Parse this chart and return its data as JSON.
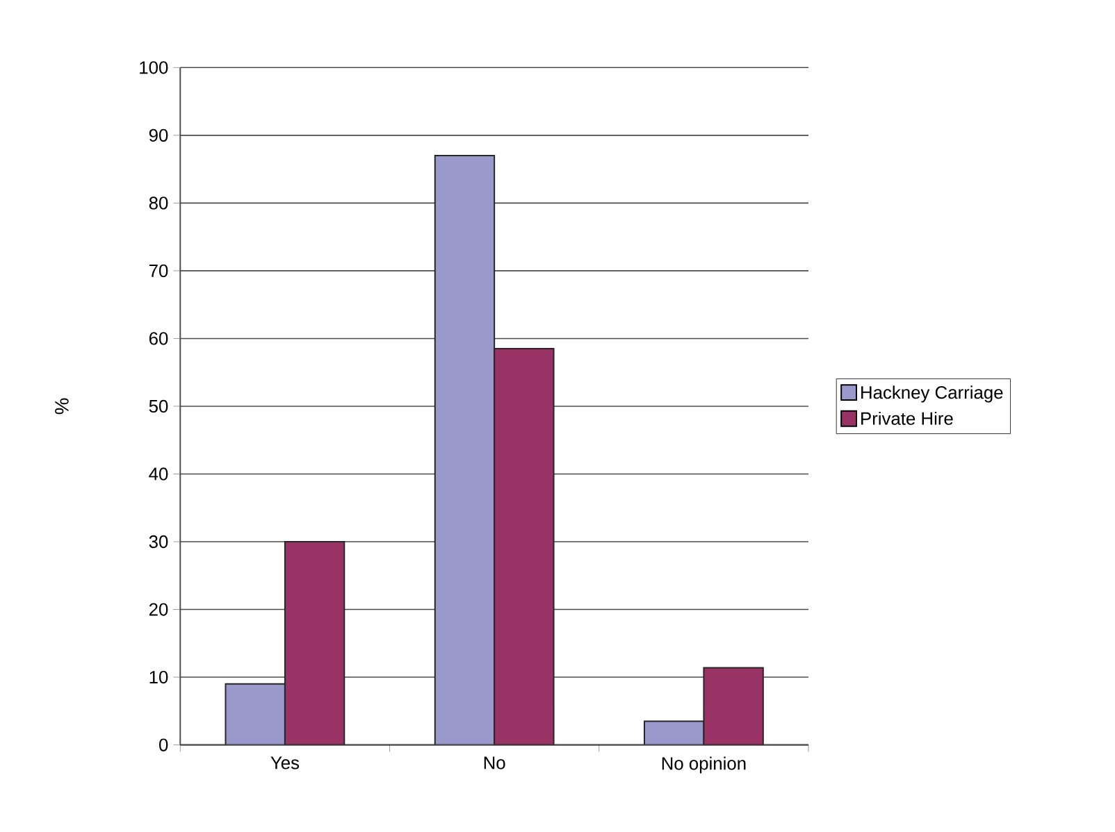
{
  "chart_data": {
    "type": "bar",
    "ylabel": "%",
    "categories": [
      "Yes",
      "No",
      "No opinion"
    ],
    "series": [
      {
        "name": "Hackney Carriage",
        "color": "#9999cc",
        "values": [
          9,
          87,
          3.5
        ]
      },
      {
        "name": "Private Hire",
        "color": "#993366",
        "values": [
          30,
          58.5,
          11.4
        ]
      }
    ],
    "ylim": [
      0,
      100
    ],
    "yticks": [
      0,
      10,
      20,
      30,
      40,
      50,
      60,
      70,
      80,
      90,
      100
    ],
    "grid": "y",
    "legend": "right"
  }
}
